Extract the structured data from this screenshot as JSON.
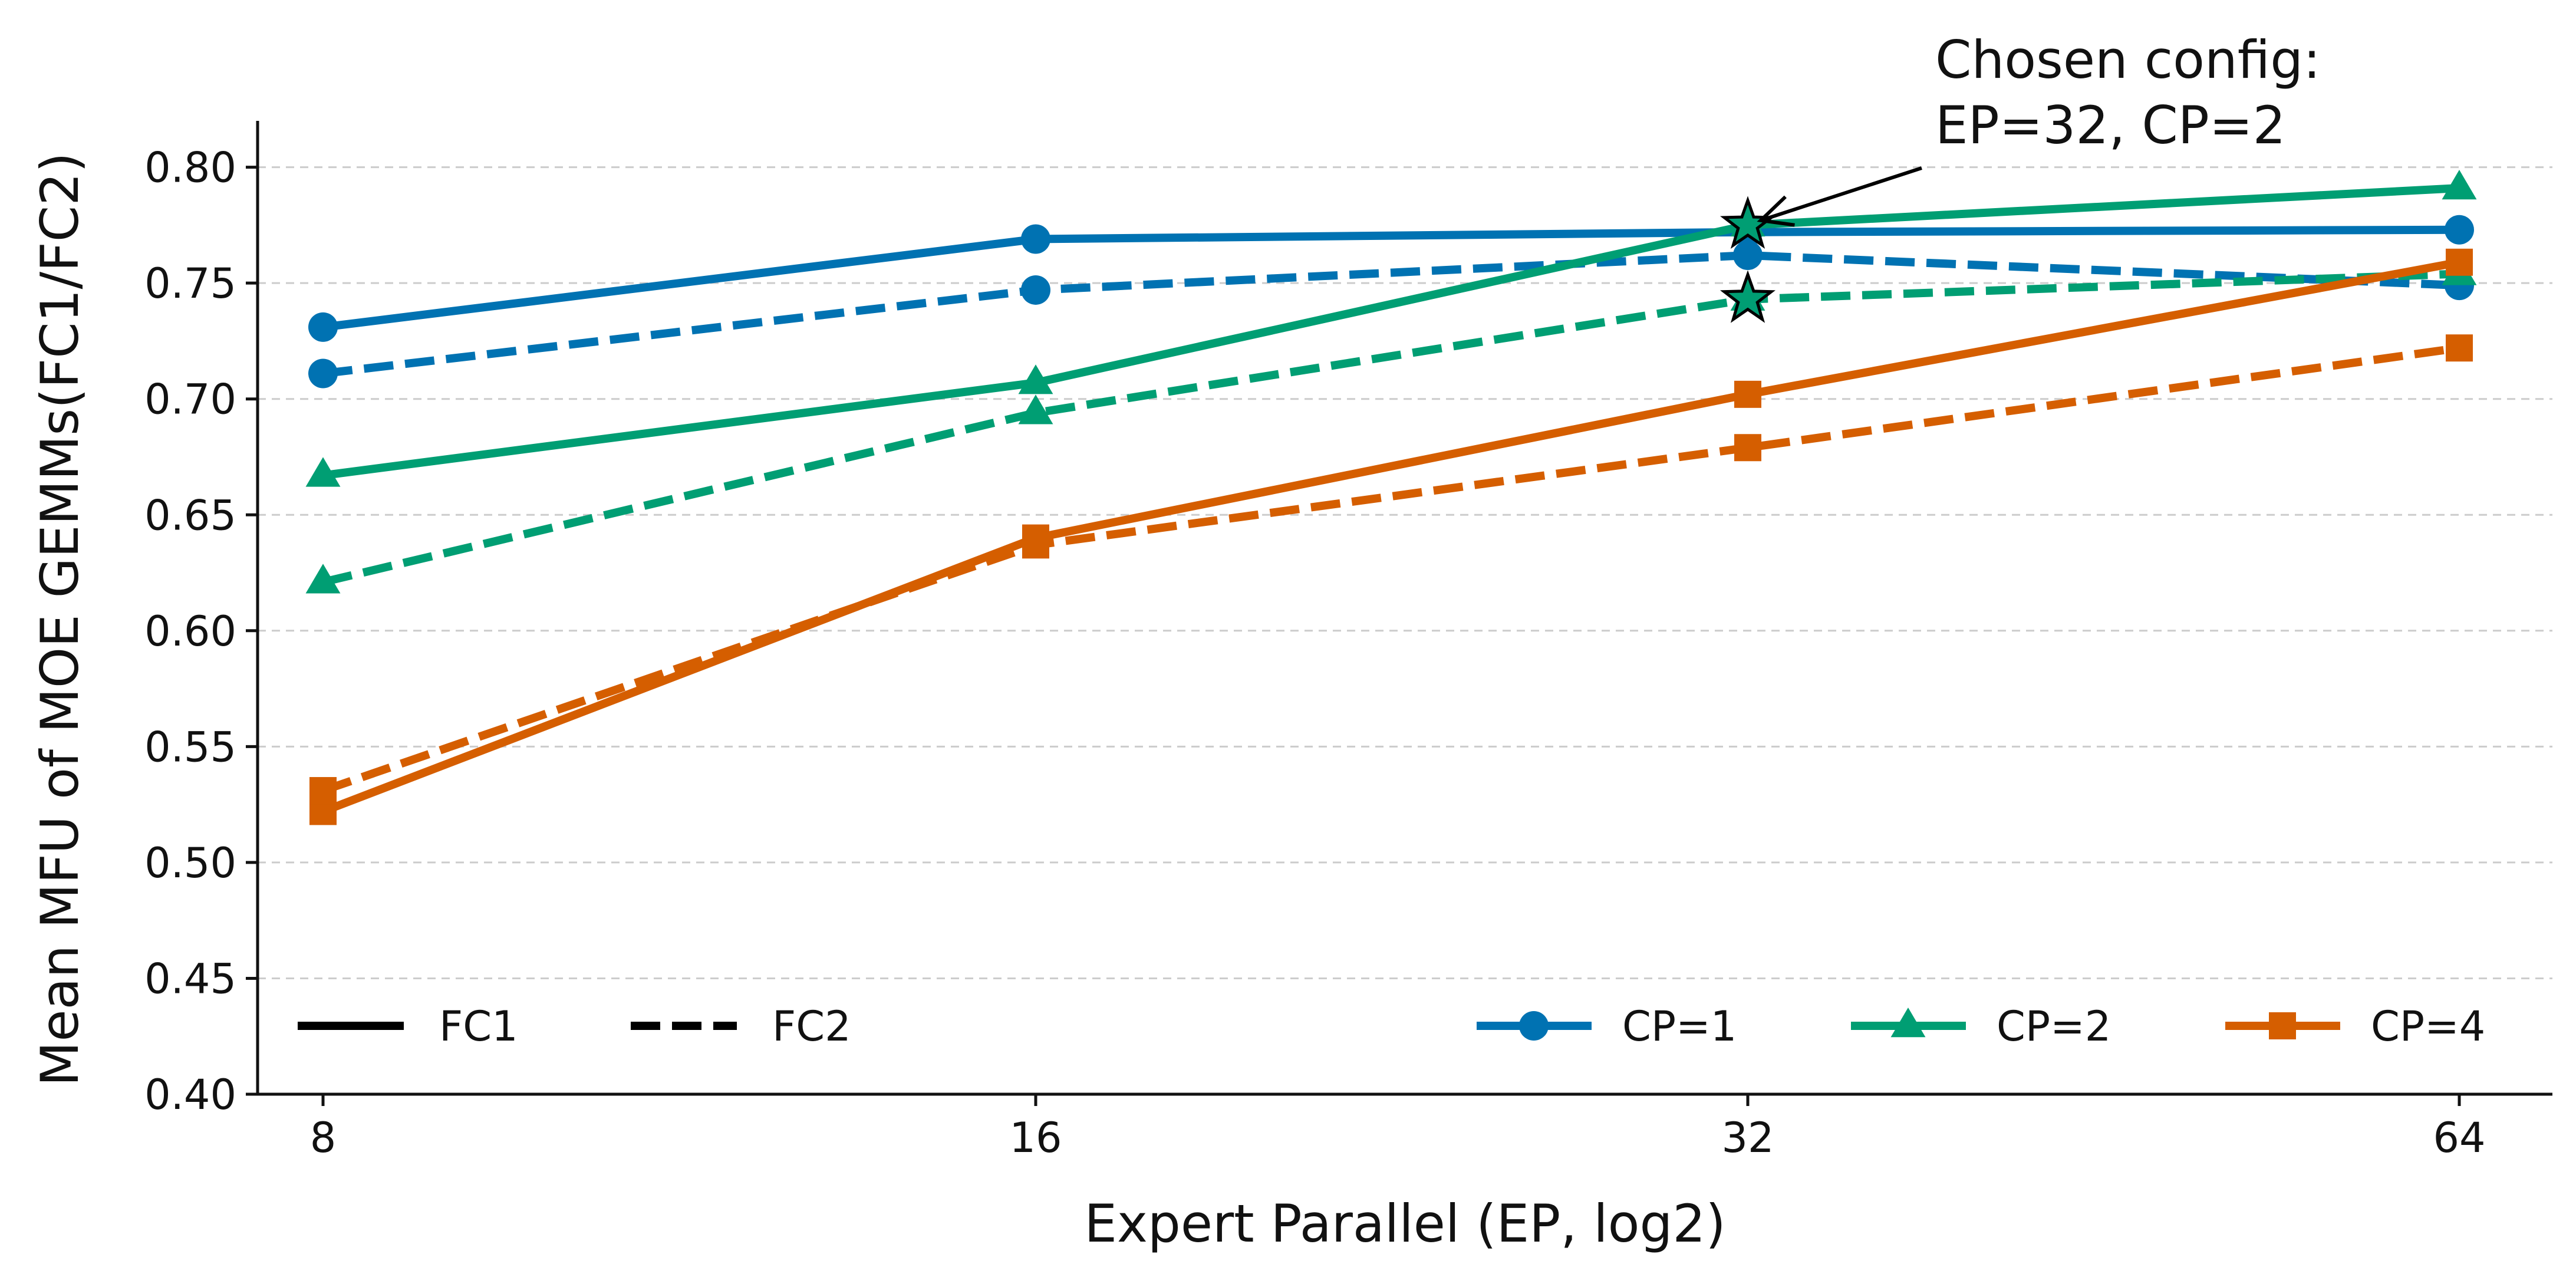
{
  "chart_data": {
    "type": "line",
    "xlabel": "Expert Parallel (EP, log2)",
    "ylabel": "Mean MFU of MOE GEMMs(FC1/FC2)",
    "x_scale": "log2",
    "x": [
      8,
      16,
      32,
      64
    ],
    "x_tick_labels": [
      "8",
      "16",
      "32",
      "64"
    ],
    "ylim": [
      0.4,
      0.82
    ],
    "y_ticks": [
      0.4,
      0.45,
      0.5,
      0.55,
      0.6,
      0.65,
      0.7,
      0.75,
      0.8
    ],
    "y_tick_labels": [
      "0.40",
      "0.45",
      "0.50",
      "0.55",
      "0.60",
      "0.65",
      "0.70",
      "0.75",
      "0.80"
    ],
    "grid": "horizontal dashed",
    "series": [
      {
        "name": "CP=1 FC1",
        "group": "CP=1",
        "style": "solid",
        "marker": "circle",
        "color": "#0072B2",
        "values": [
          0.731,
          0.769,
          0.772,
          0.773
        ]
      },
      {
        "name": "CP=1 FC2",
        "group": "CP=1",
        "style": "dashed",
        "marker": "circle",
        "color": "#0072B2",
        "values": [
          0.711,
          0.747,
          0.762,
          0.749
        ]
      },
      {
        "name": "CP=2 FC1",
        "group": "CP=2",
        "style": "solid",
        "marker": "triangle",
        "color": "#009E73",
        "values": [
          0.667,
          0.707,
          0.775,
          0.791
        ]
      },
      {
        "name": "CP=2 FC2",
        "group": "CP=2",
        "style": "dashed",
        "marker": "triangle",
        "color": "#009E73",
        "values": [
          0.621,
          0.694,
          0.743,
          0.754
        ]
      },
      {
        "name": "CP=4 FC1",
        "group": "CP=4",
        "style": "solid",
        "marker": "square",
        "color": "#D55E00",
        "values": [
          0.522,
          0.64,
          0.702,
          0.759
        ]
      },
      {
        "name": "CP=4 FC2",
        "group": "CP=4",
        "style": "dashed",
        "marker": "square",
        "color": "#D55E00",
        "values": [
          0.531,
          0.637,
          0.679,
          0.722
        ]
      }
    ],
    "highlight_points": [
      {
        "x": 32,
        "y": 0.775,
        "marker": "star",
        "color": "#009E73"
      },
      {
        "x": 32,
        "y": 0.743,
        "marker": "star",
        "color": "#009E73"
      }
    ],
    "annotation": {
      "lines": [
        "Chosen config:",
        "EP=32, CP=2"
      ],
      "target_x": 32,
      "target_y": 0.775
    },
    "legend_style": {
      "placement": "lower-left",
      "entries": [
        {
          "label": "FC1",
          "style": "solid"
        },
        {
          "label": "FC2",
          "style": "dashed"
        }
      ]
    },
    "legend_cp": {
      "placement": "lower-right",
      "entries": [
        {
          "label": "CP=1",
          "marker": "circle",
          "color": "#0072B2"
        },
        {
          "label": "CP=2",
          "marker": "triangle",
          "color": "#009E73"
        },
        {
          "label": "CP=4",
          "marker": "square",
          "color": "#D55E00"
        }
      ]
    }
  }
}
